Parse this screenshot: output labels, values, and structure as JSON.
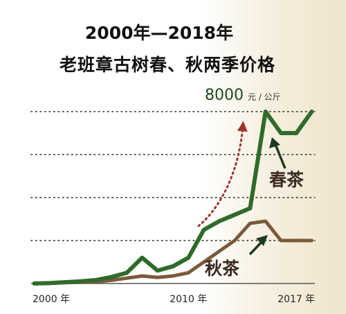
{
  "chart_data": {
    "type": "line",
    "title": "2000年—2018年",
    "subtitle": "老班章古树春、秋两季价格",
    "x_tick_labels": [
      {
        "x": 2000,
        "label": "2000 年"
      },
      {
        "x": 2010,
        "label": "2010 年"
      },
      {
        "x": 2017,
        "label": "2017 年"
      }
    ],
    "xlim": [
      1999.8,
      2018.2
    ],
    "ylim": [
      0,
      8000
    ],
    "grid": true,
    "gridlines_y": [
      2000,
      4000,
      6000,
      8000
    ],
    "annotation": {
      "value": "8000",
      "unit": "元 / 公斤"
    },
    "series": [
      {
        "name": "春茶",
        "color": "#2f6b2a",
        "x": [
          2000,
          2001,
          2002,
          2003,
          2004,
          2005,
          2006,
          2007,
          2008,
          2009,
          2010,
          2011,
          2012,
          2013,
          2014,
          2015,
          2016,
          2017,
          2018
        ],
        "y": [
          0,
          20,
          60,
          100,
          160,
          300,
          500,
          1200,
          600,
          800,
          1200,
          2500,
          2900,
          3200,
          3500,
          8000,
          7000,
          7000,
          8000
        ]
      },
      {
        "name": "秋茶",
        "color": "#7a5a3a",
        "x": [
          2000,
          2001,
          2002,
          2003,
          2004,
          2005,
          2006,
          2007,
          2008,
          2009,
          2010,
          2011,
          2012,
          2013,
          2014,
          2015,
          2016,
          2017,
          2018
        ],
        "y": [
          0,
          10,
          40,
          60,
          80,
          150,
          250,
          350,
          280,
          350,
          500,
          1000,
          1500,
          2000,
          2800,
          2900,
          2000,
          2000,
          2000
        ]
      }
    ]
  }
}
